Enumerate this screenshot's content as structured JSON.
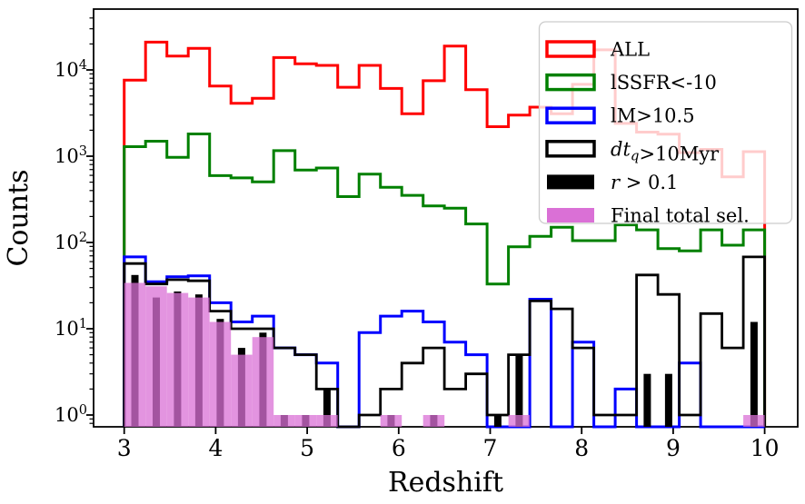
{
  "figure_title": "",
  "chart_data": {
    "type": "histogram",
    "subtype": "step-and-filled-bars",
    "title": "",
    "xlabel": "Redshift",
    "ylabel": "Counts",
    "x_scale": "linear",
    "y_scale": "log",
    "xlim": [
      2.67,
      10.37
    ],
    "ylim": [
      0.73,
      50000
    ],
    "grid": false,
    "bin_start": 3,
    "bin_end": 10,
    "n_bins": 30,
    "x_ticks": [
      3,
      4,
      5,
      6,
      7,
      8,
      9,
      10
    ],
    "y_tick_base": "10",
    "y_tick_exponents": [
      0,
      1,
      2,
      3,
      4
    ],
    "legend_position": "upper right",
    "series": [
      {
        "name": "ALL",
        "color": "#ff0000",
        "style": "step",
        "linewidth": 3,
        "values": [
          7600,
          21000,
          14500,
          17800,
          6500,
          4100,
          4700,
          13900,
          11800,
          11300,
          6300,
          11300,
          6100,
          3100,
          7500,
          18900,
          5900,
          2200,
          3000,
          3700,
          3100,
          6800,
          17100,
          2400,
          1900,
          1800,
          1100,
          1200,
          575,
          1130
        ]
      },
      {
        "name": "lSSFR<-10",
        "color": "#008000",
        "style": "step",
        "linewidth": 3,
        "values": [
          1290,
          1490,
          970,
          1810,
          595,
          560,
          505,
          1160,
          690,
          730,
          340,
          620,
          437,
          352,
          265,
          250,
          164,
          33,
          89,
          118,
          150,
          105,
          105,
          160,
          140,
          85,
          80,
          140,
          93,
          140
        ]
      },
      {
        "name": "lM>10.5",
        "color": "#0000ff",
        "style": "step",
        "linewidth": 3,
        "values": [
          68,
          35,
          40,
          41,
          20,
          12,
          14,
          6,
          5,
          4,
          0,
          9,
          14,
          16,
          12,
          7,
          5,
          0,
          0,
          22,
          0,
          7,
          0,
          2,
          0,
          0,
          4,
          0,
          0,
          0
        ]
      },
      {
        "name": "dt_q>10Myr",
        "color": "#000000",
        "style": "step",
        "linewidth": 2.8,
        "values": [
          57,
          33,
          37,
          36,
          16,
          10,
          10,
          6,
          5,
          2,
          0,
          1,
          2,
          4,
          6,
          2,
          3,
          1,
          5,
          21,
          17,
          6,
          1,
          1,
          42,
          25,
          1,
          15,
          6,
          68
        ]
      },
      {
        "name": "r > 0.1",
        "color": "#000000",
        "style": "bar",
        "rwidth": 0.34,
        "opacity": 1,
        "values": [
          42,
          23,
          27,
          25,
          13,
          6,
          9,
          1,
          1,
          2,
          0,
          0,
          1,
          0,
          1,
          0,
          0,
          1,
          5,
          0,
          0,
          0,
          0,
          0,
          3,
          3,
          0,
          0,
          0,
          12
        ]
      },
      {
        "name": "Final total sel.",
        "color": "#da70d6",
        "style": "bar",
        "rwidth": 1.0,
        "opacity": 0.75,
        "values": [
          34,
          31,
          26,
          23,
          12,
          5,
          8,
          1,
          1,
          1,
          0,
          0,
          1,
          0,
          1,
          0,
          0,
          0,
          1,
          0,
          0,
          0,
          0,
          0,
          0,
          0,
          0,
          0,
          0,
          1
        ]
      }
    ],
    "legend": [
      {
        "label": "ALL",
        "swatch": "outline",
        "color": "#ff0000"
      },
      {
        "label": "lSSFR<-10",
        "swatch": "outline",
        "color": "#008000"
      },
      {
        "label": "lM>10.5",
        "swatch": "outline",
        "color": "#0000ff"
      },
      {
        "label": "dt_q>10Myr",
        "swatch": "outline",
        "color": "#000000",
        "segments": [
          {
            "t": "dt",
            "italic": true
          },
          {
            "t": "q",
            "italic": true,
            "sub": true
          },
          {
            "t": ">10Myr"
          }
        ]
      },
      {
        "label": "r > 0.1",
        "swatch": "solid",
        "color": "#000000",
        "segments": [
          {
            "t": "r",
            "italic": true
          },
          {
            "t": " > 0.1"
          }
        ]
      },
      {
        "label": "Final total sel.",
        "swatch": "solid",
        "color": "#da70d6"
      }
    ]
  }
}
